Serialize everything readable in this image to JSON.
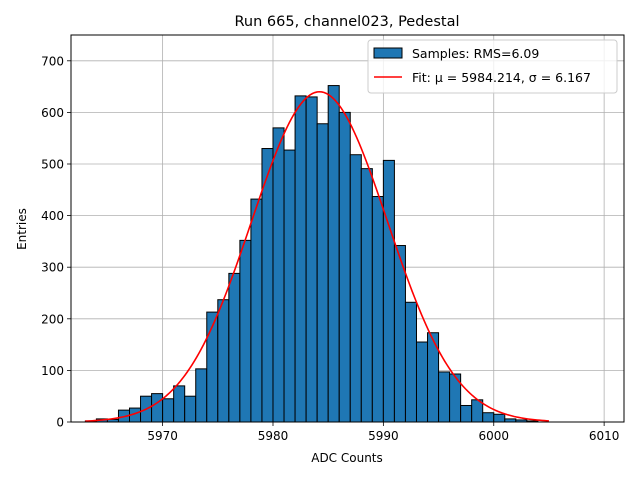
{
  "chart_data": {
    "type": "bar",
    "title": "Run 665, channel023, Pedestal",
    "xlabel": "ADC Counts",
    "ylabel": "Entries",
    "xlim": [
      5961.7,
      6011.8
    ],
    "ylim": [
      0,
      750
    ],
    "xticks": [
      5970,
      5980,
      5990,
      6000,
      6010
    ],
    "yticks": [
      0,
      100,
      200,
      300,
      400,
      500,
      600,
      700
    ],
    "grid": true,
    "legend_position": "top-right",
    "bin_width": 1,
    "bin_edges_start": 5963,
    "values": [
      2,
      6,
      5,
      23,
      27,
      50,
      55,
      45,
      70,
      50,
      103,
      213,
      237,
      288,
      352,
      432,
      530,
      570,
      527,
      632,
      630,
      578,
      652,
      600,
      518,
      491,
      437,
      507,
      342,
      232,
      155,
      173,
      97,
      93,
      32,
      43,
      18,
      15,
      6,
      4,
      2
    ],
    "fit": {
      "mu": 5984.214,
      "sigma": 6.167,
      "amplitude": 640,
      "x_range": [
        5963,
        6005
      ]
    },
    "series": [
      {
        "name": "Samples: RMS=6.09",
        "kind": "histogram",
        "color": "#1f77b4",
        "edge_color": "#000000"
      },
      {
        "name": "Fit: μ = 5984.214, σ = 6.167",
        "kind": "line",
        "color": "#ff0000"
      }
    ]
  }
}
